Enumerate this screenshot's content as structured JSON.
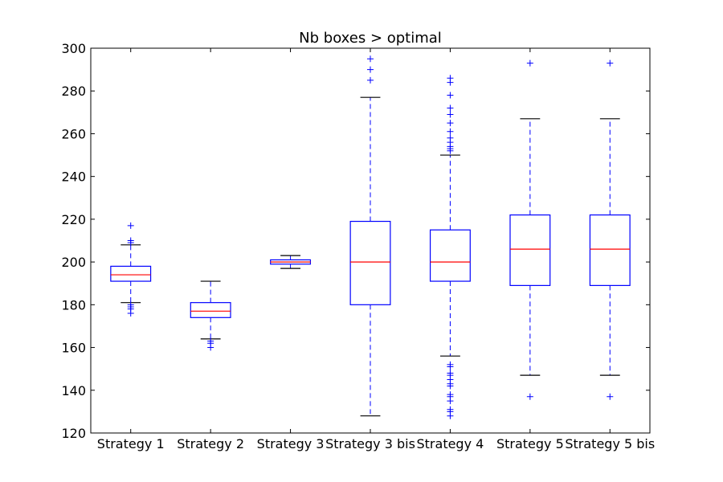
{
  "chart_data": {
    "type": "box",
    "title": "Nb boxes > optimal",
    "xlabel": "",
    "ylabel": "",
    "ylim": [
      120,
      300
    ],
    "yticks": [
      120,
      140,
      160,
      180,
      200,
      220,
      240,
      260,
      280,
      300
    ],
    "grid": false,
    "categories": [
      "Strategy 1",
      "Strategy 2",
      "Strategy 3",
      "Strategy 3 bis",
      "Strategy 4",
      "Strategy 5",
      "Strategy 5 bis"
    ],
    "boxes": [
      {
        "whisker_low": 181,
        "q1": 191,
        "median": 194,
        "q3": 198,
        "whisker_high": 208,
        "outliers": [
          176,
          178,
          179,
          180,
          209,
          210,
          217
        ]
      },
      {
        "whisker_low": 164,
        "q1": 174,
        "median": 177,
        "q3": 181,
        "whisker_high": 191,
        "outliers": [
          160,
          162,
          163
        ]
      },
      {
        "whisker_low": 197,
        "q1": 199,
        "median": 200,
        "q3": 201,
        "whisker_high": 203,
        "outliers": []
      },
      {
        "whisker_low": 128,
        "q1": 180,
        "median": 200,
        "q3": 219,
        "whisker_high": 277,
        "outliers": [
          285,
          290,
          295
        ]
      },
      {
        "whisker_low": 156,
        "q1": 191,
        "median": 200,
        "q3": 215,
        "whisker_high": 250,
        "outliers": [
          128,
          130,
          131,
          135,
          137,
          138,
          142,
          143,
          145,
          147,
          148,
          151,
          152,
          252,
          253,
          254,
          256,
          258,
          261,
          265,
          269,
          272,
          278,
          284,
          286
        ]
      },
      {
        "whisker_low": 147,
        "q1": 189,
        "median": 206,
        "q3": 222,
        "whisker_high": 267,
        "outliers": [
          137,
          293
        ]
      },
      {
        "whisker_low": 147,
        "q1": 189,
        "median": 206,
        "q3": 222,
        "whisker_high": 267,
        "outliers": [
          137,
          293
        ]
      }
    ],
    "colors": {
      "box": "#0000ff",
      "median": "#ff0000",
      "cap": "#000000",
      "flier": "#0000ff",
      "axes": "#000000"
    }
  }
}
